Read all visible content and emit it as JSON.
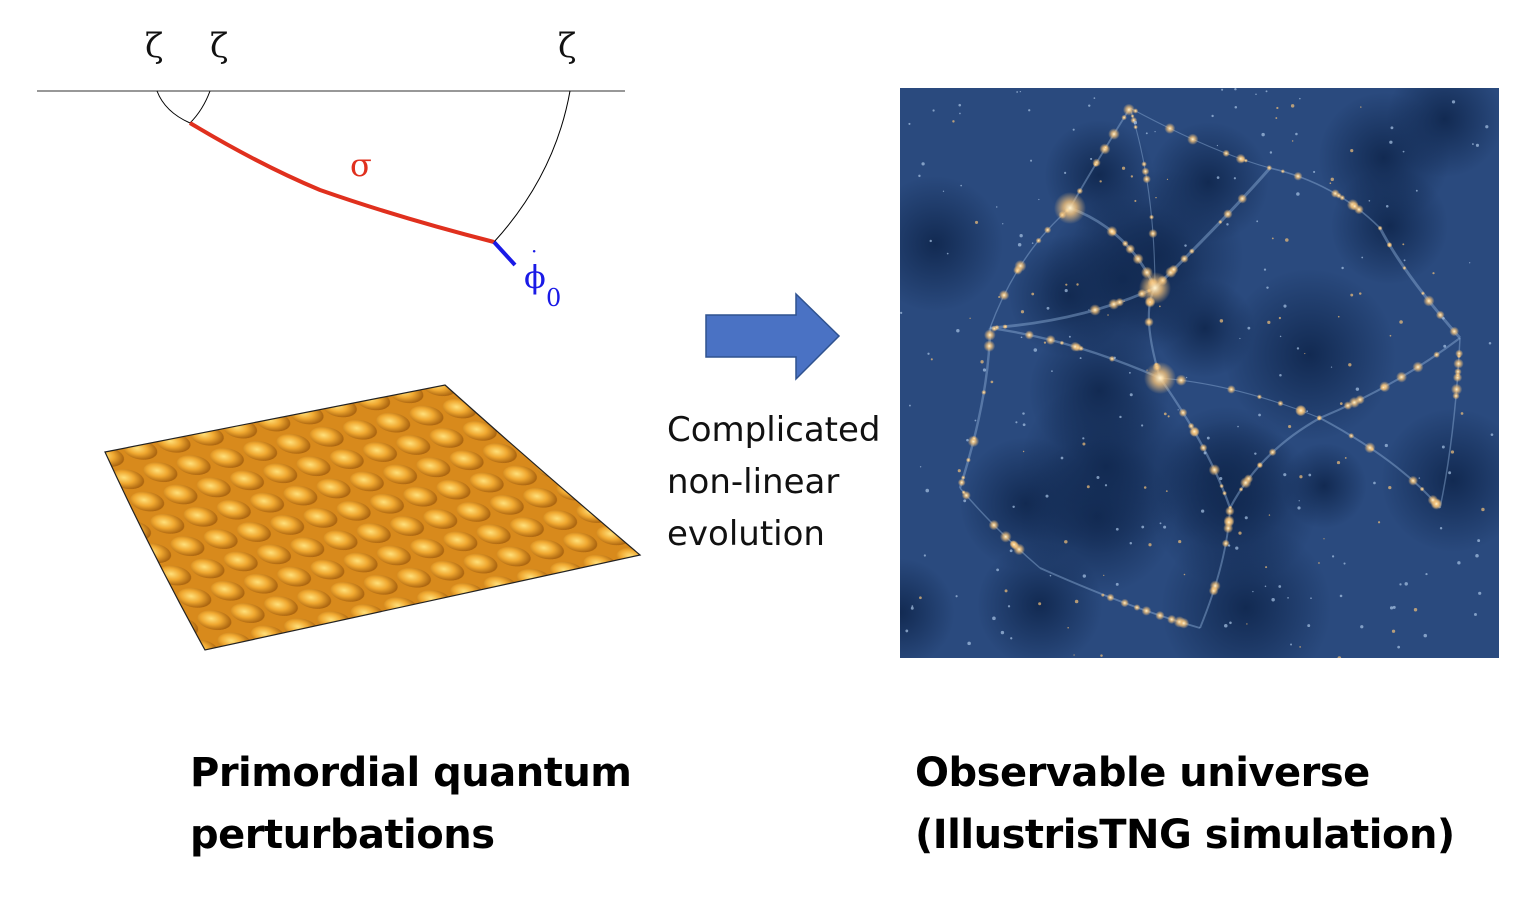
{
  "diagram": {
    "labels": {
      "zeta_1": "ζ",
      "zeta_2": "ζ",
      "zeta_3": "ζ",
      "sigma": "σ",
      "phi": "ϕ",
      "phi_subscript": "0"
    },
    "arrow_text": [
      "Complicated",
      "non-linear",
      "evolution"
    ],
    "left_caption": [
      "Primordial quantum",
      "perturbations"
    ],
    "right_caption": [
      "Observable universe",
      "(IllustrisTNG simulation)"
    ],
    "colors": {
      "sigma_line": "#e0301e",
      "phi_line": "#1a1ae6",
      "arrow": "#4a72c4",
      "surface": "#e8a030",
      "simulation_bg": "#1c3560",
      "simulation_glow": "#f4c27a"
    }
  }
}
